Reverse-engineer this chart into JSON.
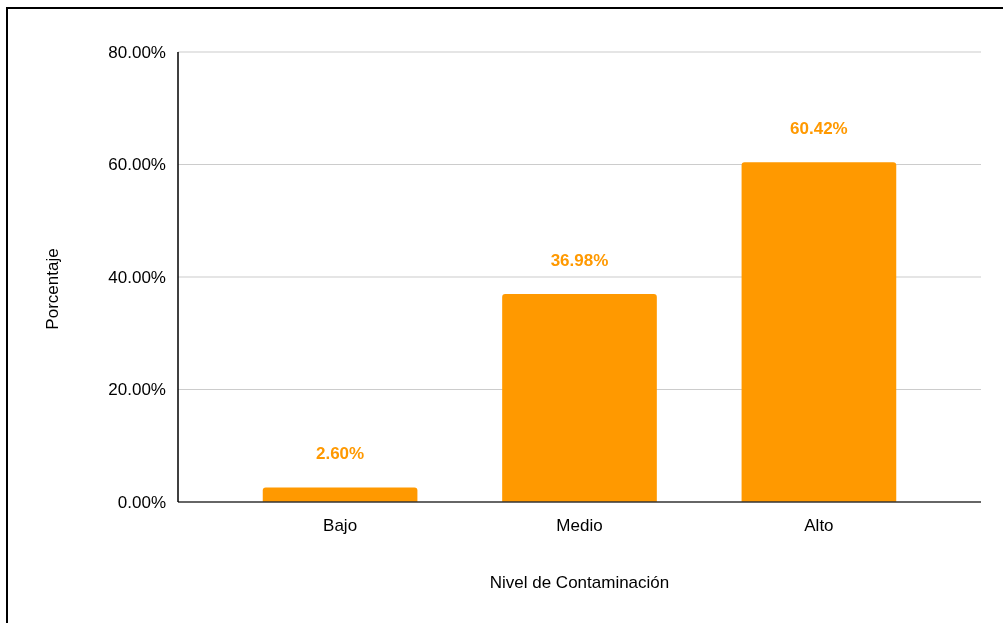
{
  "chart_data": {
    "type": "bar",
    "xlabel": "Nivel de Contaminación",
    "ylabel": "Porcentaje",
    "categories": [
      "Bajo",
      "Medio",
      "Alto"
    ],
    "values": [
      2.6,
      36.98,
      60.42
    ],
    "color": "#ff9900",
    "value_labels": [
      "2.60%",
      "36.98%",
      "60.42%"
    ],
    "ylim": [
      0,
      80
    ],
    "yticks": [
      {
        "value": 0,
        "label": "0.00%"
      },
      {
        "value": 20,
        "label": "20.00%"
      },
      {
        "value": 40,
        "label": "40.00%"
      },
      {
        "value": 60,
        "label": "60.00%"
      },
      {
        "value": 80,
        "label": "80.00%"
      }
    ],
    "grid": "y"
  }
}
